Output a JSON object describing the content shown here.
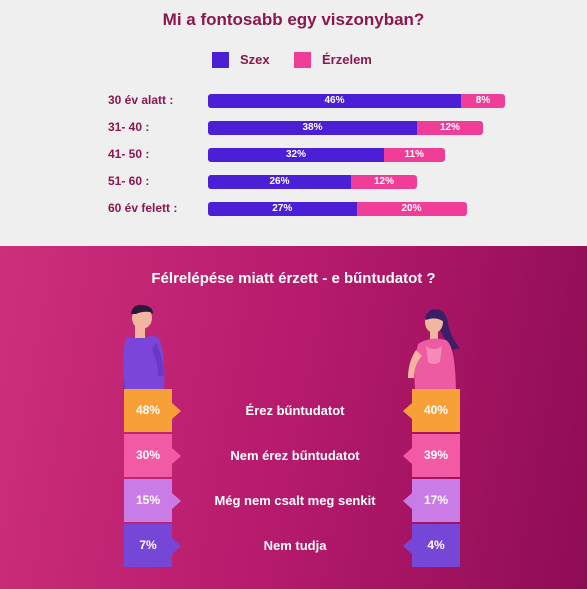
{
  "top": {
    "title": "Mi a fontosabb egy viszonyban?",
    "legend": [
      {
        "label": "Szex",
        "color": "#4a1fd6"
      },
      {
        "label": "Érzelem",
        "color": "#f03d97"
      }
    ]
  },
  "bottom": {
    "title": "Félrelépése miatt érzett - e bűntudatot ?"
  },
  "chart_data": [
    {
      "type": "bar",
      "orientation": "horizontal",
      "stacked": true,
      "title": "Mi a fontosabb egy viszonyban?",
      "categories": [
        "30 év alatt :",
        "31- 40 :",
        "41- 50 :",
        "51- 60 :",
        "60 év felett :"
      ],
      "series": [
        {
          "name": "Szex",
          "color": "#4a1fd6",
          "values": [
            46,
            38,
            32,
            26,
            27
          ],
          "labels": [
            "46%",
            "38%",
            "32%",
            "26%",
            "27%"
          ]
        },
        {
          "name": "Érzelem",
          "color": "#f03d97",
          "values": [
            8,
            12,
            11,
            12,
            20
          ],
          "labels": [
            "8%",
            "12%",
            "11%",
            "12%",
            "20%"
          ]
        }
      ],
      "legend": "top"
    },
    {
      "type": "table",
      "title": "Félrelépése miatt érzett - e bűntudatot ?",
      "rows": [
        {
          "label": "Érez bűntudatot",
          "left": "48%",
          "right": "40%",
          "color": "#f7a037"
        },
        {
          "label": "Nem érez bűntudatot",
          "left": "30%",
          "right": "39%",
          "color": "#f25aa6"
        },
        {
          "label": "Még nem csalt meg senkit",
          "left": "15%",
          "right": "17%",
          "color": "#c97be6"
        },
        {
          "label": "Nem tudja",
          "left": "7%",
          "right": "4%",
          "color": "#7646d6"
        }
      ]
    }
  ]
}
